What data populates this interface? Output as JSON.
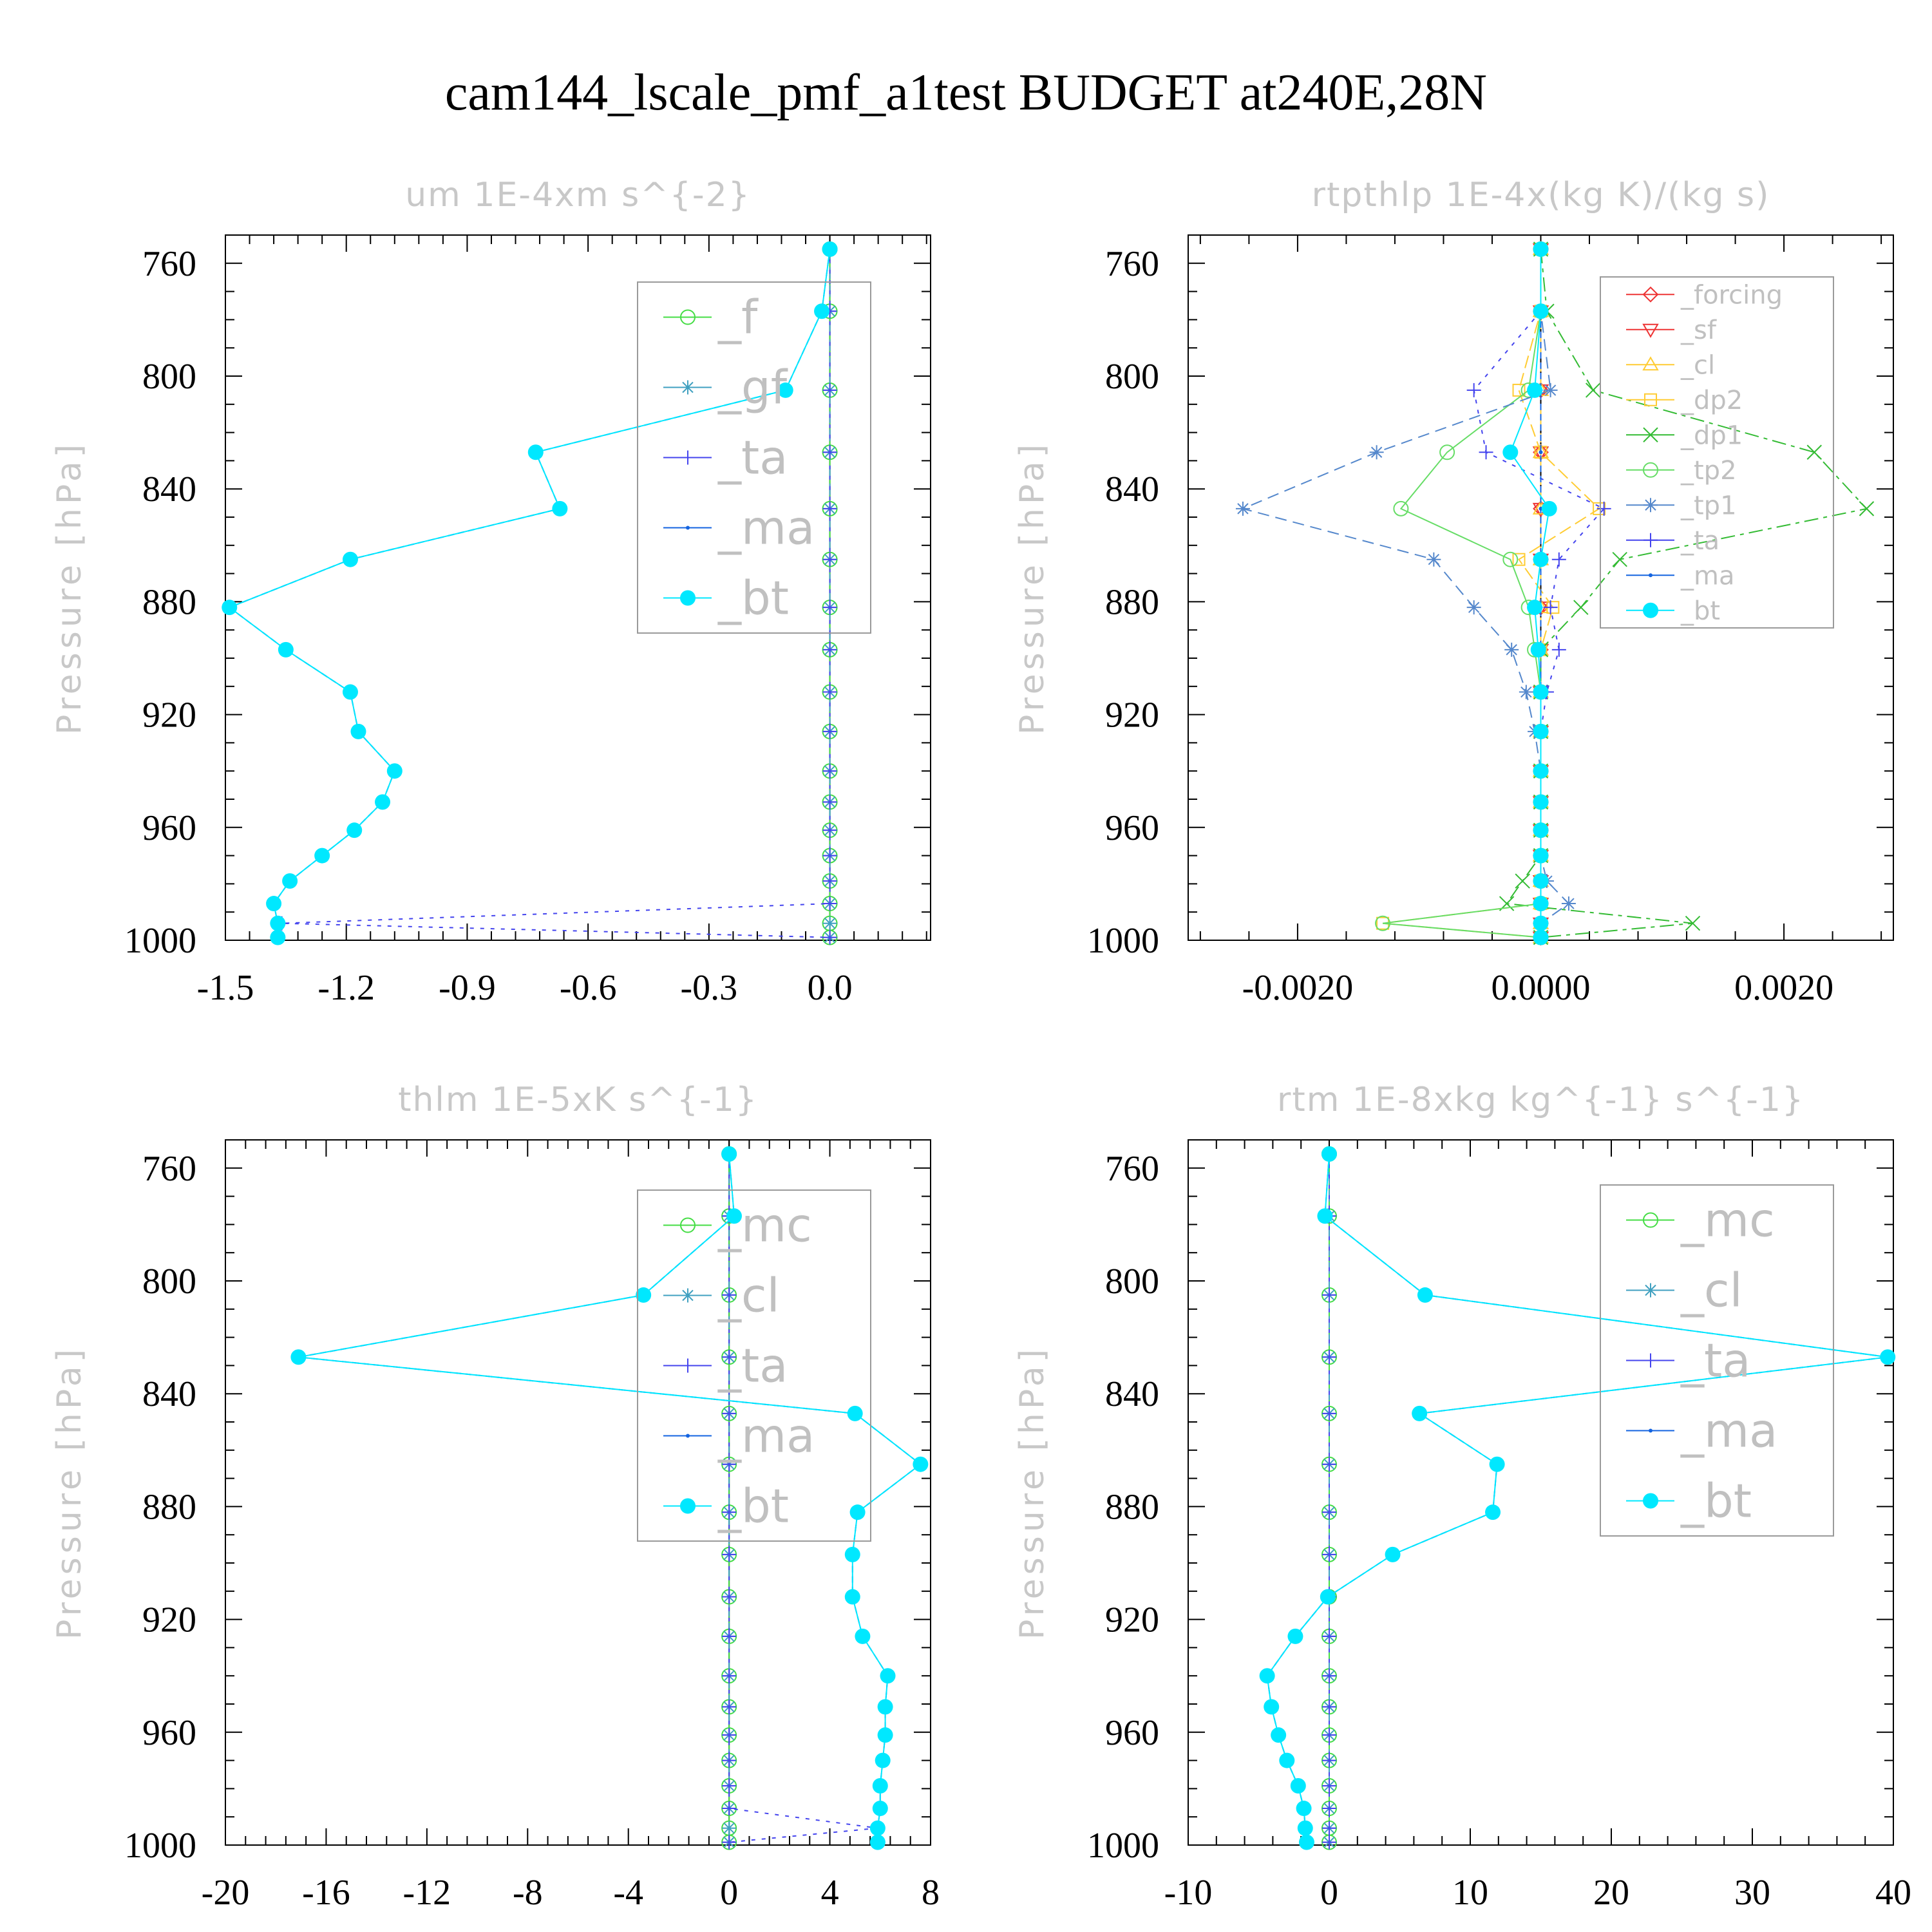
{
  "title": "cam144_lscale_pmf_a1test  BUDGET at240E,28N",
  "chart_data": [
    {
      "type": "line",
      "title": "um   1E-4xm s^{-2}",
      "ylabel": "Pressure [hPa]",
      "ylim": [
        750,
        1000
      ],
      "xlim": [
        -1.5,
        0.25
      ],
      "xticks": [
        "-1.5",
        "-1.2",
        "-0.9",
        "-0.6",
        "-0.3",
        "0.0"
      ],
      "xtick_values": [
        -1.5,
        -1.2,
        -0.9,
        -0.6,
        -0.3,
        0.0
      ],
      "yticks": [
        "760",
        "800",
        "840",
        "880",
        "920",
        "960",
        "1000"
      ],
      "ytick_values": [
        760,
        800,
        840,
        880,
        920,
        960,
        1000
      ],
      "pressure": [
        755,
        777,
        805,
        827,
        847,
        865,
        882,
        897,
        912,
        926,
        940,
        951,
        961,
        970,
        979,
        987,
        994,
        999
      ],
      "series": [
        {
          "name": "_f",
          "color": "#44dd44",
          "marker": "circle",
          "values": [
            0,
            0,
            0,
            0,
            0,
            0,
            0,
            0,
            0,
            0,
            0,
            0,
            0,
            0,
            0,
            0,
            0,
            0
          ]
        },
        {
          "name": "_gf",
          "color": "#40a0c0",
          "marker": "star",
          "values": [
            0,
            0,
            0,
            0,
            0,
            0,
            0,
            0,
            0,
            0,
            0,
            0,
            0,
            0,
            0,
            0,
            0,
            0
          ]
        },
        {
          "name": "_ta",
          "color": "#4444ee",
          "marker": "plus",
          "values": [
            0,
            0,
            0,
            0,
            0,
            0,
            0,
            0,
            0,
            0,
            0,
            0,
            0,
            0,
            0,
            0,
            -1.36,
            0
          ]
        },
        {
          "name": "_ma",
          "color": "#1464e0",
          "marker": "dot",
          "values": [
            0,
            -0.02,
            -0.11,
            -0.73,
            -0.67,
            -1.19,
            -1.49,
            -1.35,
            -1.19,
            -1.17,
            -1.08,
            -1.11,
            -1.18,
            -1.26,
            -1.34,
            -1.38,
            -1.37,
            -1.37
          ]
        },
        {
          "name": "_bt",
          "color": "#00e8ff",
          "marker": "filled",
          "values": [
            0,
            -0.02,
            -0.11,
            -0.73,
            -0.67,
            -1.19,
            -1.49,
            -1.35,
            -1.19,
            -1.17,
            -1.08,
            -1.11,
            -1.18,
            -1.26,
            -1.34,
            -1.38,
            -1.37,
            -1.37
          ]
        }
      ]
    },
    {
      "type": "line",
      "title": "rtpthlp   1E-4x(kg K)/(kg s)",
      "ylabel": "Pressure [hPa]",
      "ylim": [
        750,
        1000
      ],
      "xlim": [
        -0.0029,
        0.0029
      ],
      "xticks": [
        "-0.0020",
        "0.0000",
        "0.0020"
      ],
      "xtick_values": [
        -0.002,
        0.0,
        0.002
      ],
      "yticks": [
        "760",
        "800",
        "840",
        "880",
        "920",
        "960",
        "1000"
      ],
      "ytick_values": [
        760,
        800,
        840,
        880,
        920,
        960,
        1000
      ],
      "pressure": [
        755,
        777,
        805,
        827,
        847,
        865,
        882,
        897,
        912,
        926,
        940,
        951,
        961,
        970,
        979,
        987,
        994,
        999
      ],
      "series": [
        {
          "name": "_forcing",
          "color": "#ee3333",
          "marker": "diamond",
          "values": [
            0,
            0,
            0,
            0,
            0,
            0,
            0,
            0,
            0,
            0,
            0,
            0,
            0,
            0,
            0,
            0,
            0,
            0
          ]
        },
        {
          "name": "_sf",
          "color": "#ee3333",
          "marker": "tri-down",
          "values": [
            0,
            0,
            0,
            0,
            0,
            0,
            0,
            0,
            0,
            0,
            0,
            0,
            0,
            0,
            0,
            0,
            0,
            0
          ]
        },
        {
          "name": "_cl",
          "color": "#ffcc33",
          "marker": "tri-up",
          "values": [
            0,
            0,
            0,
            0,
            0,
            0,
            0,
            0,
            0,
            0,
            0,
            0,
            0,
            0,
            0,
            0,
            0,
            0
          ]
        },
        {
          "name": "_dp2",
          "color": "#ffcc33",
          "marker": "square",
          "values": [
            0,
            0,
            -0.00018,
            0,
            0.00048,
            -0.00018,
            0.0001,
            0,
            0,
            0,
            0,
            0,
            0,
            0,
            0,
            0,
            -0.0013,
            0
          ]
        },
        {
          "name": "_dp1",
          "color": "#33bb33",
          "marker": "x",
          "values": [
            0,
            5e-05,
            0.00043,
            0.00225,
            0.00268,
            0.00065,
            0.00033,
            0,
            0,
            0,
            0,
            0,
            0,
            0,
            -0.00015,
            -0.00028,
            0.00125,
            0
          ]
        },
        {
          "name": "_tp2",
          "color": "#66dd66",
          "marker": "circle",
          "values": [
            0,
            0,
            -0.0001,
            -0.00077,
            -0.00115,
            -0.00025,
            -0.0001,
            -5e-05,
            0,
            0,
            0,
            0,
            0,
            0,
            0,
            0,
            -0.0013,
            0
          ]
        },
        {
          "name": "_tp1",
          "color": "#5588cc",
          "marker": "star",
          "values": [
            0,
            0,
            8e-05,
            -0.00135,
            -0.00245,
            -0.00088,
            -0.00055,
            -0.00024,
            -0.00012,
            -5e-05,
            0,
            0,
            0,
            0,
            5e-05,
            0.00023,
            0,
            0
          ]
        },
        {
          "name": "_ta",
          "color": "#4444ee",
          "marker": "plus",
          "values": [
            0,
            0,
            -0.00055,
            -0.00045,
            0.00052,
            0.00015,
            8e-05,
            0.00015,
            5e-05,
            0,
            0,
            0,
            0,
            0,
            0,
            0,
            0,
            0
          ]
        },
        {
          "name": "_ma",
          "color": "#1464e0",
          "marker": "dot",
          "values": [
            0,
            0,
            0,
            0,
            0,
            0,
            0,
            0,
            0,
            0,
            0,
            0,
            0,
            0,
            0,
            0,
            0,
            0
          ]
        },
        {
          "name": "_bt",
          "color": "#00e8ff",
          "marker": "filled",
          "values": [
            0,
            0,
            -5e-05,
            -0.00025,
            7e-05,
            0,
            -5e-05,
            -2e-05,
            0,
            0,
            0,
            0,
            0,
            0,
            0,
            0,
            0,
            0
          ]
        }
      ]
    },
    {
      "type": "line",
      "title": "thlm   1E-5xK s^{-1}",
      "ylabel": "Pressure [hPa]",
      "ylim": [
        750,
        1000
      ],
      "xlim": [
        -20,
        8
      ],
      "xticks": [
        "-20",
        "-16",
        "-12",
        "-8",
        "-4",
        "0",
        "4",
        "8"
      ],
      "xtick_values": [
        -20,
        -16,
        -12,
        -8,
        -4,
        0,
        4,
        8
      ],
      "yticks": [
        "760",
        "800",
        "840",
        "880",
        "920",
        "960",
        "1000"
      ],
      "ytick_values": [
        760,
        800,
        840,
        880,
        920,
        960,
        1000
      ],
      "pressure": [
        755,
        777,
        805,
        827,
        847,
        865,
        882,
        897,
        912,
        926,
        940,
        951,
        961,
        970,
        979,
        987,
        994,
        999
      ],
      "series": [
        {
          "name": "_mc",
          "color": "#44dd44",
          "marker": "circle",
          "values": [
            0,
            0,
            0,
            0,
            0,
            0,
            0,
            0,
            0,
            0,
            0,
            0,
            0,
            0,
            0,
            0,
            0,
            0
          ]
        },
        {
          "name": "_cl",
          "color": "#40a0c0",
          "marker": "star",
          "values": [
            0,
            0,
            0,
            0,
            0,
            0,
            0,
            0,
            0,
            0,
            0,
            0,
            0,
            0,
            0,
            0,
            0,
            0
          ]
        },
        {
          "name": "_ta",
          "color": "#4444ee",
          "marker": "plus",
          "values": [
            0,
            0,
            0,
            0,
            0,
            0,
            0,
            0,
            0,
            0,
            0,
            0,
            0,
            0,
            0,
            0,
            5.9,
            0
          ]
        },
        {
          "name": "_ma",
          "color": "#1464e0",
          "marker": "dot",
          "values": [
            0,
            0.2,
            -3.4,
            -17.1,
            5,
            7.6,
            5.1,
            4.9,
            4.9,
            5.3,
            6.3,
            6.2,
            6.2,
            6.1,
            6.0,
            6.0,
            5.9,
            5.9
          ]
        },
        {
          "name": "_bt",
          "color": "#00e8ff",
          "marker": "filled",
          "values": [
            0,
            0.2,
            -3.4,
            -17.1,
            5,
            7.6,
            5.1,
            4.9,
            4.9,
            5.3,
            6.3,
            6.2,
            6.2,
            6.1,
            6.0,
            6.0,
            5.9,
            5.9
          ]
        }
      ]
    },
    {
      "type": "line",
      "title": "rtm   1E-8xkg kg^{-1} s^{-1}",
      "ylabel": "Pressure [hPa]",
      "ylim": [
        750,
        1000
      ],
      "xlim": [
        -10,
        40
      ],
      "xticks": [
        "-10",
        "0",
        "10",
        "20",
        "30",
        "40"
      ],
      "xtick_values": [
        -10,
        0,
        10,
        20,
        30,
        40
      ],
      "yticks": [
        "760",
        "800",
        "840",
        "880",
        "920",
        "960",
        "1000"
      ],
      "ytick_values": [
        760,
        800,
        840,
        880,
        920,
        960,
        1000
      ],
      "pressure": [
        755,
        777,
        805,
        827,
        847,
        865,
        882,
        897,
        912,
        926,
        940,
        951,
        961,
        970,
        979,
        987,
        994,
        999
      ],
      "series": [
        {
          "name": "_mc",
          "color": "#44dd44",
          "marker": "circle",
          "values": [
            0,
            0,
            0,
            0,
            0,
            0,
            0,
            0,
            0,
            0,
            0,
            0,
            0,
            0,
            0,
            0,
            0,
            0
          ]
        },
        {
          "name": "_cl",
          "color": "#40a0c0",
          "marker": "star",
          "values": [
            0,
            0,
            0,
            0,
            0,
            0,
            0,
            0,
            0,
            0,
            0,
            0,
            0,
            0,
            0,
            0,
            0,
            0
          ]
        },
        {
          "name": "_ta",
          "color": "#4444ee",
          "marker": "plus",
          "values": [
            0,
            0,
            0,
            0,
            0,
            0,
            0,
            0,
            0,
            0,
            0,
            0,
            0,
            0,
            0,
            0,
            0,
            0
          ]
        },
        {
          "name": "_ma",
          "color": "#1464e0",
          "marker": "dot",
          "values": [
            0,
            -0.3,
            6.8,
            39.6,
            6.4,
            11.9,
            11.6,
            4.5,
            -0.1,
            -2.4,
            -4.4,
            -4.1,
            -3.6,
            -3.0,
            -2.2,
            -1.8,
            -1.7,
            -1.6
          ]
        },
        {
          "name": "_bt",
          "color": "#00e8ff",
          "marker": "filled",
          "values": [
            0,
            -0.3,
            6.8,
            39.6,
            6.4,
            11.9,
            11.6,
            4.5,
            -0.1,
            -2.4,
            -4.4,
            -4.1,
            -3.6,
            -3.0,
            -2.2,
            -1.8,
            -1.7,
            -1.6
          ]
        }
      ]
    }
  ]
}
